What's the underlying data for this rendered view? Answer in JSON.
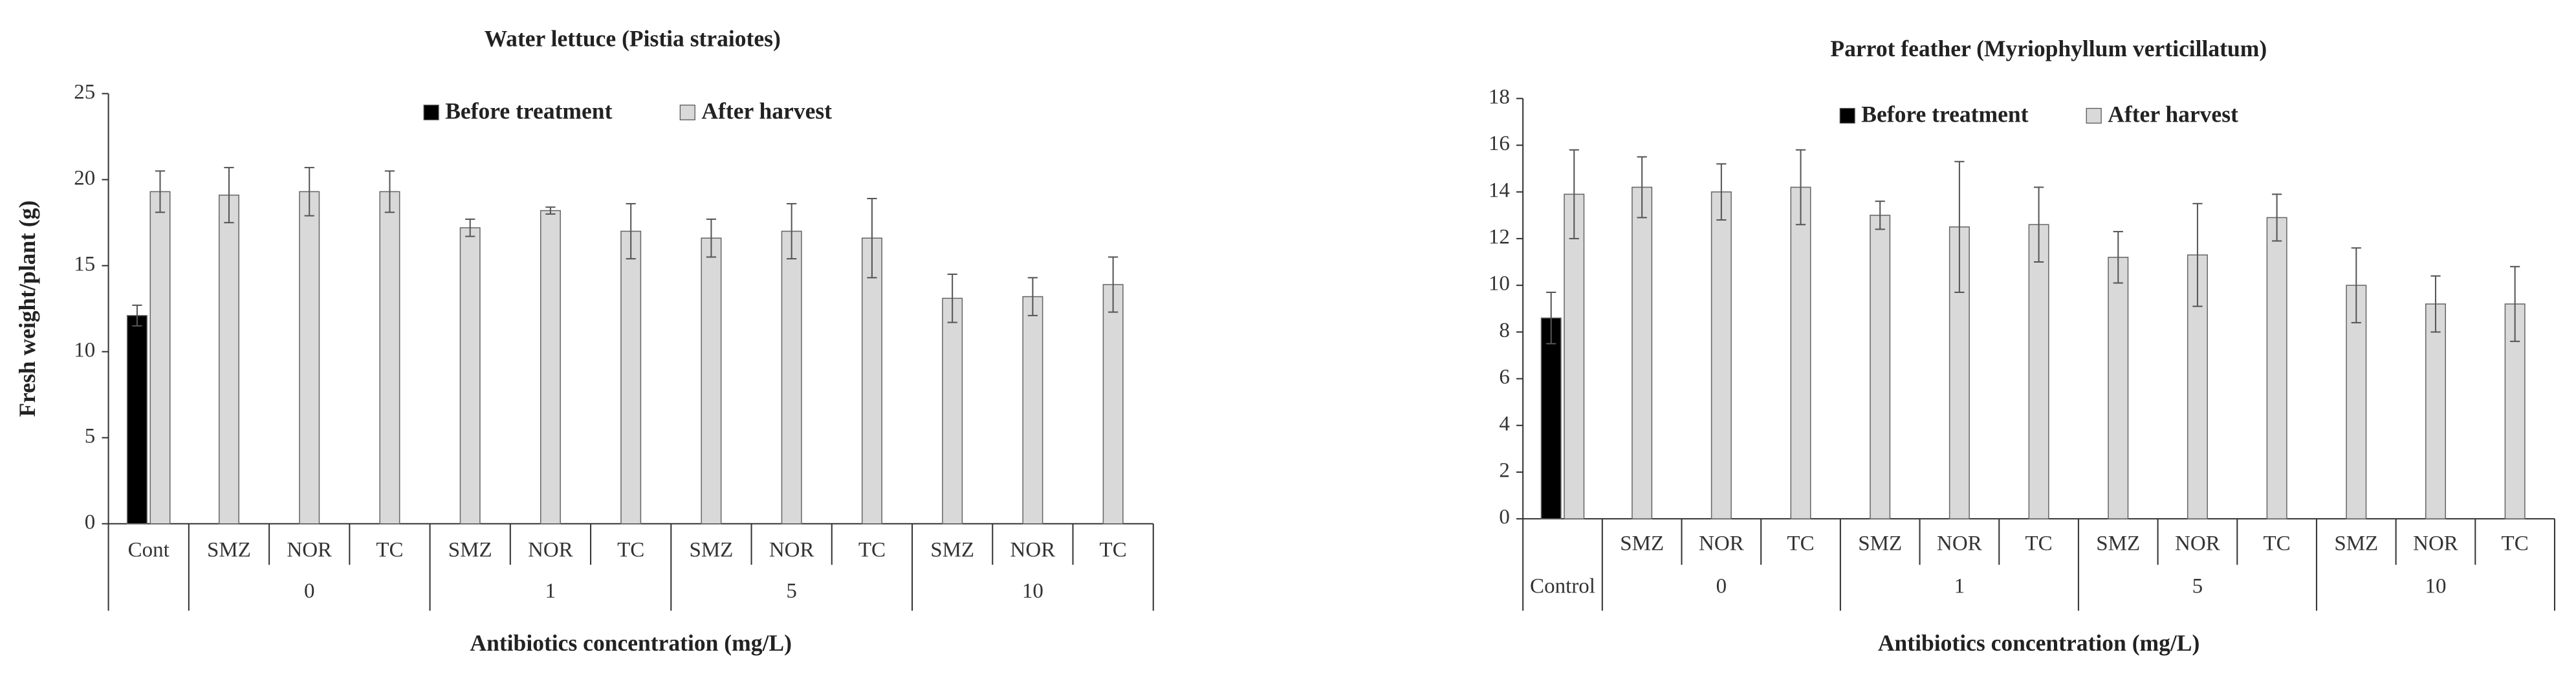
{
  "chart_data": [
    {
      "type": "bar",
      "title": "Water lettuce (Pistia straiotes)",
      "y_label": "Fresh weight/plant (g)",
      "x_label": "Antibiotics concentration (mg/L)",
      "categories": [
        "Cont",
        "SMZ",
        "NOR",
        "TC",
        "SMZ",
        "NOR",
        "TC",
        "SMZ",
        "NOR",
        "TC",
        "SMZ",
        "NOR",
        "TC"
      ],
      "category_groups": [
        null,
        "0",
        "0",
        "0",
        "1",
        "1",
        "1",
        "5",
        "5",
        "5",
        "10",
        "10",
        "10"
      ],
      "series": [
        {
          "name": "Before treatment",
          "color": "#000000",
          "values": [
            12.1,
            null,
            null,
            null,
            null,
            null,
            null,
            null,
            null,
            null,
            null,
            null,
            null
          ],
          "errors": [
            0.6,
            null,
            null,
            null,
            null,
            null,
            null,
            null,
            null,
            null,
            null,
            null,
            null
          ]
        },
        {
          "name": "After harvest",
          "color": "#d9d9d9",
          "values": [
            19.3,
            19.1,
            19.3,
            19.3,
            17.2,
            18.2,
            17.0,
            16.6,
            17.0,
            16.6,
            13.1,
            13.2,
            13.9
          ],
          "errors": [
            1.2,
            1.6,
            1.4,
            1.2,
            0.5,
            0.2,
            1.6,
            1.1,
            1.6,
            2.3,
            1.4,
            1.1,
            1.6
          ]
        }
      ],
      "ylim": [
        0,
        25
      ],
      "yticks": [
        0,
        5,
        10,
        15,
        20,
        25
      ],
      "grid": false
    },
    {
      "type": "bar",
      "title": "Parrot feather (Myriophyllum verticillatum)",
      "x_label": "Antibiotics concentration (mg/L)",
      "categories": [
        null,
        "SMZ",
        "NOR",
        "TC",
        "SMZ",
        "NOR",
        "TC",
        "SMZ",
        "NOR",
        "TC",
        "SMZ",
        "NOR",
        "TC"
      ],
      "category_groups": [
        "Control",
        "0",
        "0",
        "0",
        "1",
        "1",
        "1",
        "5",
        "5",
        "5",
        "10",
        "10",
        "10"
      ],
      "series": [
        {
          "name": "Before treatment",
          "color": "#000000",
          "values": [
            8.6,
            null,
            null,
            null,
            null,
            null,
            null,
            null,
            null,
            null,
            null,
            null,
            null
          ],
          "errors": [
            1.1,
            null,
            null,
            null,
            null,
            null,
            null,
            null,
            null,
            null,
            null,
            null,
            null
          ]
        },
        {
          "name": "After harvest",
          "color": "#d9d9d9",
          "values": [
            13.9,
            14.2,
            14.0,
            14.2,
            13.0,
            12.5,
            12.6,
            11.2,
            11.3,
            12.9,
            10.0,
            9.2,
            9.2
          ],
          "errors": [
            1.9,
            1.3,
            1.2,
            1.6,
            0.6,
            2.8,
            1.6,
            1.1,
            2.2,
            1.0,
            1.6,
            1.2,
            1.6
          ]
        }
      ],
      "ylim": [
        0,
        18
      ],
      "yticks": [
        0,
        2,
        4,
        6,
        8,
        10,
        12,
        14,
        16,
        18
      ],
      "grid": false
    }
  ]
}
